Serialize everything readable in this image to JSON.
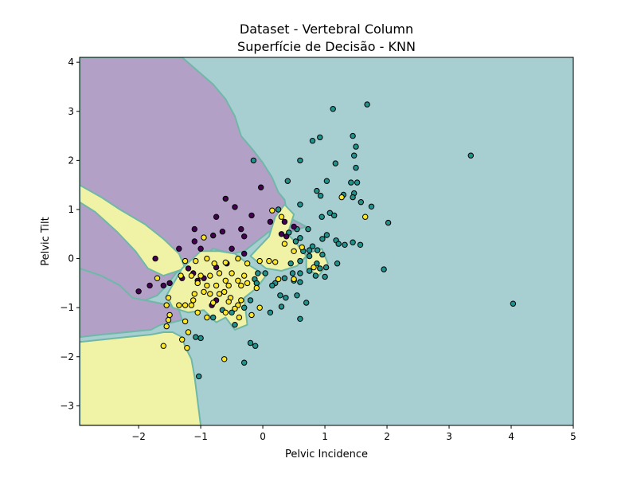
{
  "chart_data": {
    "type": "scatter",
    "title": "Dataset - Vertebral Column",
    "subtitle": "Superfície de Decisão - KNN",
    "xlabel": "Pelvic Incidence",
    "ylabel": "Pelvic Tilt",
    "xlim": [
      -2.95,
      5.0
    ],
    "ylim": [
      -3.4,
      4.1
    ],
    "xticks": [
      "−2",
      "−1",
      "0",
      "1",
      "2",
      "3",
      "4",
      "5"
    ],
    "xtick_values": [
      -2,
      -1,
      0,
      1,
      2,
      3,
      4,
      5
    ],
    "yticks": [
      "−3",
      "−2",
      "−1",
      "0",
      "1",
      "2",
      "3",
      "4"
    ],
    "ytick_values": [
      -3,
      -2,
      -1,
      0,
      1,
      2,
      3,
      4
    ],
    "grid": false,
    "legend": "none",
    "colors": {
      "class_0": "#440154",
      "class_1": "#21918c",
      "class_2": "#fde725",
      "region_0": "#b3a0c6",
      "region_1": "#a7ced1",
      "region_2": "#f0f2a5",
      "region_edge": "#6fb8a8"
    },
    "regions": [
      {
        "class": 0,
        "polygon": [
          [
            -2.95,
            4.1
          ],
          [
            -1.3,
            4.1
          ],
          [
            -0.8,
            3.55
          ],
          [
            -0.6,
            3.25
          ],
          [
            -0.45,
            2.9
          ],
          [
            -0.35,
            2.5
          ],
          [
            -0.15,
            2.2
          ],
          [
            0.0,
            1.95
          ],
          [
            0.15,
            1.65
          ],
          [
            0.25,
            1.35
          ],
          [
            0.35,
            1.2
          ],
          [
            0.4,
            0.85
          ],
          [
            0.7,
            0.65
          ],
          [
            0.45,
            0.55
          ],
          [
            0.1,
            0.55
          ],
          [
            -0.1,
            0.35
          ],
          [
            -0.3,
            0.15
          ],
          [
            -0.5,
            0.1
          ],
          [
            -0.8,
            0.2
          ],
          [
            -0.95,
            0.05
          ],
          [
            -1.1,
            -0.05
          ],
          [
            -1.25,
            -0.15
          ],
          [
            -1.4,
            -0.3
          ],
          [
            -1.55,
            -0.55
          ],
          [
            -1.7,
            -0.75
          ],
          [
            -1.9,
            -0.85
          ],
          [
            -2.1,
            -0.8
          ],
          [
            -2.3,
            -0.55
          ],
          [
            -2.6,
            -0.35
          ],
          [
            -2.95,
            -0.2
          ]
        ]
      },
      {
        "class": 0,
        "polygon": [
          [
            -2.95,
            -0.2
          ],
          [
            -2.6,
            -0.35
          ],
          [
            -2.3,
            -0.55
          ],
          [
            -2.1,
            -0.8
          ],
          [
            -1.9,
            -0.85
          ],
          [
            -1.7,
            -0.9
          ],
          [
            -1.5,
            -0.95
          ],
          [
            -1.35,
            -1.05
          ],
          [
            -1.3,
            -1.25
          ],
          [
            -1.45,
            -1.3
          ],
          [
            -1.65,
            -1.35
          ],
          [
            -1.8,
            -1.45
          ],
          [
            -2.2,
            -1.5
          ],
          [
            -2.6,
            -1.55
          ],
          [
            -2.95,
            -1.6
          ]
        ]
      },
      {
        "class": 2,
        "polygon": [
          [
            -2.95,
            -1.7
          ],
          [
            -2.2,
            -1.6
          ],
          [
            -1.8,
            -1.55
          ],
          [
            -1.6,
            -1.5
          ],
          [
            -1.45,
            -1.5
          ],
          [
            -1.3,
            -1.6
          ],
          [
            -1.25,
            -1.8
          ],
          [
            -1.15,
            -2.05
          ],
          [
            -1.1,
            -2.4
          ],
          [
            -1.05,
            -2.9
          ],
          [
            -1.0,
            -3.4
          ],
          [
            -2.95,
            -3.4
          ]
        ]
      },
      {
        "class": 2,
        "polygon": [
          [
            -2.95,
            1.5
          ],
          [
            -2.6,
            1.25
          ],
          [
            -2.3,
            1.0
          ],
          [
            -1.9,
            0.7
          ],
          [
            -1.6,
            0.4
          ],
          [
            -1.35,
            0.1
          ],
          [
            -1.25,
            -0.2
          ],
          [
            -1.6,
            -0.35
          ],
          [
            -1.85,
            -0.2
          ],
          [
            -2.05,
            0.15
          ],
          [
            -2.35,
            0.55
          ],
          [
            -2.7,
            0.95
          ],
          [
            -2.95,
            1.15
          ]
        ]
      },
      {
        "class": 2,
        "polygon": [
          [
            -1.55,
            -0.75
          ],
          [
            -1.3,
            -0.2
          ],
          [
            -1.0,
            0.15
          ],
          [
            -0.7,
            0.15
          ],
          [
            -0.45,
            0.1
          ],
          [
            -0.2,
            -0.15
          ],
          [
            0.05,
            -0.35
          ],
          [
            -0.1,
            -0.6
          ],
          [
            -0.3,
            -0.8
          ],
          [
            -0.25,
            -1.35
          ],
          [
            -0.45,
            -1.45
          ],
          [
            -0.6,
            -1.2
          ],
          [
            -0.75,
            -1.3
          ],
          [
            -0.95,
            -1.05
          ],
          [
            -1.2,
            -1.1
          ],
          [
            -1.45,
            -1.0
          ]
        ]
      },
      {
        "class": 2,
        "polygon": [
          [
            -0.2,
            0.05
          ],
          [
            0.1,
            0.45
          ],
          [
            0.2,
            0.85
          ],
          [
            0.35,
            1.1
          ],
          [
            0.5,
            0.9
          ],
          [
            0.4,
            0.5
          ],
          [
            0.55,
            0.3
          ],
          [
            0.7,
            0.05
          ],
          [
            0.55,
            -0.15
          ],
          [
            0.3,
            -0.25
          ],
          [
            0.05,
            -0.2
          ]
        ]
      },
      {
        "class": 2,
        "polygon": [
          [
            0.7,
            0.1
          ],
          [
            0.95,
            0.2
          ],
          [
            1.05,
            -0.1
          ],
          [
            0.9,
            -0.35
          ],
          [
            0.7,
            -0.2
          ]
        ]
      }
    ],
    "series": [
      {
        "class": 1,
        "points": [
          [
            1.13,
            3.05
          ],
          [
            1.68,
            3.14
          ],
          [
            0.8,
            2.4
          ],
          [
            0.92,
            2.47
          ],
          [
            0.6,
            2.0
          ],
          [
            1.45,
            2.5
          ],
          [
            1.5,
            2.28
          ],
          [
            1.47,
            2.1
          ],
          [
            3.35,
            2.1
          ],
          [
            1.17,
            1.94
          ],
          [
            1.5,
            1.85
          ],
          [
            -0.15,
            2.0
          ],
          [
            0.4,
            1.58
          ],
          [
            1.03,
            1.58
          ],
          [
            1.42,
            1.55
          ],
          [
            1.52,
            1.55
          ],
          [
            0.87,
            1.38
          ],
          [
            0.93,
            1.28
          ],
          [
            1.3,
            1.3
          ],
          [
            1.47,
            1.33
          ],
          [
            1.58,
            1.15
          ],
          [
            1.45,
            1.25
          ],
          [
            1.75,
            1.06
          ],
          [
            0.6,
            1.1
          ],
          [
            0.25,
            1.0
          ],
          [
            0.95,
            0.85
          ],
          [
            1.08,
            0.93
          ],
          [
            1.15,
            0.88
          ],
          [
            2.02,
            0.73
          ],
          [
            0.55,
            0.6
          ],
          [
            0.73,
            0.6
          ],
          [
            0.42,
            0.53
          ],
          [
            0.6,
            0.42
          ],
          [
            1.03,
            0.48
          ],
          [
            0.96,
            0.4
          ],
          [
            0.53,
            0.35
          ],
          [
            1.18,
            0.37
          ],
          [
            1.22,
            0.3
          ],
          [
            1.32,
            0.28
          ],
          [
            1.45,
            0.33
          ],
          [
            1.57,
            0.28
          ],
          [
            0.8,
            0.25
          ],
          [
            0.75,
            0.17
          ],
          [
            0.88,
            0.17
          ],
          [
            0.65,
            0.15
          ],
          [
            0.75,
            0.05
          ],
          [
            0.96,
            0.08
          ],
          [
            0.6,
            -0.05
          ],
          [
            0.45,
            -0.1
          ],
          [
            0.87,
            -0.1
          ],
          [
            1.2,
            -0.1
          ],
          [
            0.92,
            -0.2
          ],
          [
            1.02,
            -0.18
          ],
          [
            0.75,
            -0.25
          ],
          [
            0.6,
            -0.3
          ],
          [
            0.48,
            -0.3
          ],
          [
            1.95,
            -0.22
          ],
          [
            0.85,
            -0.35
          ],
          [
            1.0,
            -0.37
          ],
          [
            0.35,
            -0.4
          ],
          [
            0.5,
            -0.45
          ],
          [
            0.6,
            -0.48
          ],
          [
            0.2,
            -0.5
          ],
          [
            0.15,
            -0.55
          ],
          [
            -0.08,
            -0.3
          ],
          [
            0.04,
            -0.3
          ],
          [
            -0.13,
            -0.42
          ],
          [
            -0.1,
            -0.5
          ],
          [
            0.55,
            -0.75
          ],
          [
            0.37,
            -0.8
          ],
          [
            0.28,
            -0.75
          ],
          [
            0.7,
            -0.9
          ],
          [
            0.3,
            -0.98
          ],
          [
            0.12,
            -1.1
          ],
          [
            0.6,
            -1.23
          ],
          [
            -0.2,
            -0.85
          ],
          [
            -0.8,
            -1.2
          ],
          [
            -1.08,
            -1.6
          ],
          [
            -0.65,
            -1.05
          ],
          [
            -0.5,
            -1.1
          ],
          [
            -0.3,
            -1.0
          ],
          [
            -0.45,
            -1.35
          ],
          [
            -0.2,
            -1.72
          ],
          [
            -0.12,
            -1.78
          ],
          [
            -0.3,
            -2.12
          ],
          [
            -1.0,
            -1.62
          ],
          [
            -1.03,
            -2.4
          ],
          [
            4.03,
            -0.92
          ]
        ]
      },
      {
        "class": 0,
        "points": [
          [
            -0.03,
            1.45
          ],
          [
            -0.6,
            1.22
          ],
          [
            -0.45,
            1.05
          ],
          [
            -0.75,
            0.85
          ],
          [
            -0.18,
            0.88
          ],
          [
            0.35,
            0.75
          ],
          [
            0.12,
            0.75
          ],
          [
            0.5,
            0.65
          ],
          [
            -0.35,
            0.6
          ],
          [
            -1.1,
            0.6
          ],
          [
            -0.65,
            0.55
          ],
          [
            -0.3,
            0.45
          ],
          [
            0.3,
            0.5
          ],
          [
            0.38,
            0.45
          ],
          [
            -0.8,
            0.47
          ],
          [
            -1.1,
            0.35
          ],
          [
            -0.5,
            0.2
          ],
          [
            -0.3,
            0.1
          ],
          [
            -1.0,
            0.2
          ],
          [
            -1.35,
            0.2
          ],
          [
            -1.73,
            0.0
          ],
          [
            -0.58,
            -0.1
          ],
          [
            -0.75,
            -0.18
          ],
          [
            -1.2,
            -0.2
          ],
          [
            -1.12,
            -0.3
          ],
          [
            -1.3,
            -0.4
          ],
          [
            -1.05,
            -0.45
          ],
          [
            -0.95,
            -0.4
          ],
          [
            -1.5,
            -0.5
          ],
          [
            -1.6,
            -0.55
          ],
          [
            -1.82,
            -0.55
          ],
          [
            -2.0,
            -0.67
          ],
          [
            -0.75,
            -0.85
          ],
          [
            -0.82,
            -0.95
          ]
        ]
      },
      {
        "class": 2,
        "points": [
          [
            -0.95,
            0.43
          ],
          [
            0.15,
            0.98
          ],
          [
            0.3,
            0.85
          ],
          [
            1.65,
            0.85
          ],
          [
            1.27,
            1.25
          ],
          [
            0.63,
            0.23
          ],
          [
            0.5,
            0.15
          ],
          [
            0.35,
            0.3
          ],
          [
            0.1,
            -0.05
          ],
          [
            0.2,
            -0.07
          ],
          [
            0.82,
            -0.18
          ],
          [
            -0.05,
            -0.05
          ],
          [
            -0.25,
            -0.1
          ],
          [
            -0.4,
            0.0
          ],
          [
            -0.6,
            -0.08
          ],
          [
            -0.78,
            -0.1
          ],
          [
            -0.9,
            0.0
          ],
          [
            -1.08,
            -0.05
          ],
          [
            -1.25,
            -0.05
          ],
          [
            -0.7,
            -0.3
          ],
          [
            -0.5,
            -0.3
          ],
          [
            -0.3,
            -0.35
          ],
          [
            -0.85,
            -0.35
          ],
          [
            -1.0,
            -0.35
          ],
          [
            -1.15,
            -0.35
          ],
          [
            -1.32,
            -0.35
          ],
          [
            -1.7,
            -0.4
          ],
          [
            -0.6,
            -0.45
          ],
          [
            -0.4,
            -0.45
          ],
          [
            -0.25,
            -0.5
          ],
          [
            -0.35,
            -0.55
          ],
          [
            -0.55,
            -0.55
          ],
          [
            -0.75,
            -0.55
          ],
          [
            -0.9,
            -0.55
          ],
          [
            -1.05,
            -0.5
          ],
          [
            -0.62,
            -0.68
          ],
          [
            -0.85,
            -0.72
          ],
          [
            -1.1,
            -0.72
          ],
          [
            -0.95,
            -0.68
          ],
          [
            -0.7,
            -0.72
          ],
          [
            -0.52,
            -0.8
          ],
          [
            -0.55,
            -0.88
          ],
          [
            -0.35,
            -0.85
          ],
          [
            -0.8,
            -0.9
          ],
          [
            -1.12,
            -0.85
          ],
          [
            -0.4,
            -0.95
          ],
          [
            -1.15,
            -0.95
          ],
          [
            -1.25,
            -0.95
          ],
          [
            -1.35,
            -0.95
          ],
          [
            -1.52,
            -0.8
          ],
          [
            -1.55,
            -0.95
          ],
          [
            -0.45,
            -1.02
          ],
          [
            -0.6,
            -1.1
          ],
          [
            -1.05,
            -1.1
          ],
          [
            -1.5,
            -1.15
          ],
          [
            -0.9,
            -1.2
          ],
          [
            -0.38,
            -1.2
          ],
          [
            -0.18,
            -1.15
          ],
          [
            -0.05,
            -1.0
          ],
          [
            0.5,
            -0.42
          ],
          [
            0.25,
            -0.42
          ],
          [
            -0.1,
            -0.6
          ],
          [
            -1.52,
            -1.25
          ],
          [
            -1.55,
            -1.38
          ],
          [
            -1.25,
            -1.28
          ],
          [
            -1.2,
            -1.5
          ],
          [
            -1.3,
            -1.65
          ],
          [
            -1.22,
            -1.82
          ],
          [
            -1.6,
            -1.78
          ],
          [
            -0.62,
            -2.05
          ]
        ]
      }
    ]
  }
}
